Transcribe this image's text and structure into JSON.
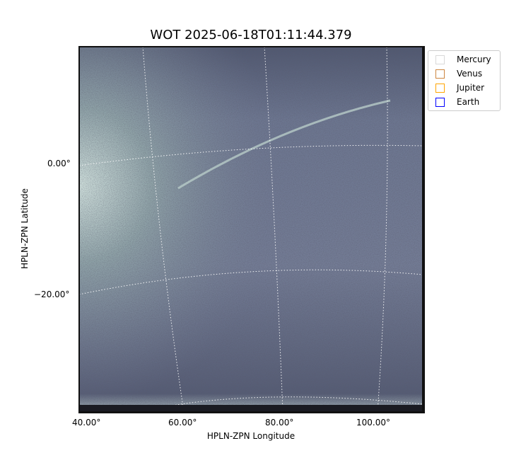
{
  "chart_data": {
    "type": "image",
    "title": "WOT 2025-06-18T01:11:44.379",
    "xlabel": "HPLN-ZPN Longitude",
    "ylabel": "HPLN-ZPN Latitude",
    "xticks": [
      "40.00°",
      "60.00°",
      "80.00°",
      "100.00°"
    ],
    "yticks": [
      "0.00°",
      "−20.00°"
    ],
    "grid": "dotted coordinate grid (white)",
    "colormap": "bone-like blue-gray",
    "legend": {
      "placement": "outside-right",
      "entries": [
        {
          "name": "Mercury",
          "color": "#d9d9d9"
        },
        {
          "name": "Venus",
          "color": "#cd853f"
        },
        {
          "name": "Jupiter",
          "color": "#ffa500"
        },
        {
          "name": "Earth",
          "color": "#0000ff"
        }
      ]
    }
  }
}
